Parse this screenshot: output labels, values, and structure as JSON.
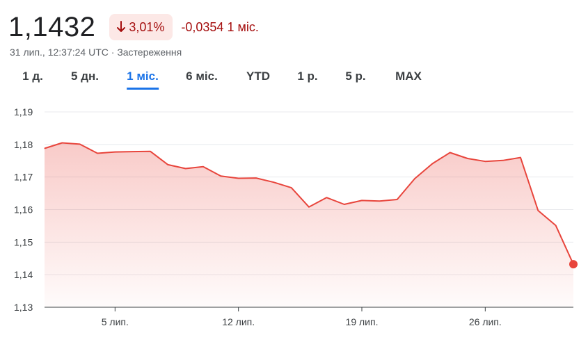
{
  "quote": {
    "price": "1,1432",
    "change_percent": "3,01%",
    "change_abs": "-0,0354",
    "period": "1 міс.",
    "timestamp": "31 лип., 12:37:24 UTC",
    "separator": "·",
    "disclaimer": "Застереження",
    "down_color": "#a50e0e",
    "down_bg": "#fce8e6"
  },
  "tabs": [
    {
      "label": "1 д.",
      "active": false
    },
    {
      "label": "5 дн.",
      "active": false
    },
    {
      "label": "1 міс.",
      "active": true
    },
    {
      "label": "6 міс.",
      "active": false
    },
    {
      "label": "YTD",
      "active": false
    },
    {
      "label": "1 р.",
      "active": false
    },
    {
      "label": "5 р.",
      "active": false
    },
    {
      "label": "MAX",
      "active": false
    }
  ],
  "chart_data": {
    "type": "area",
    "line_color": "#e8453c",
    "grid": true,
    "ylim": [
      1.13,
      1.19
    ],
    "y_ticks": [
      "1,19",
      "1,18",
      "1,17",
      "1,16",
      "1,15",
      "1,14",
      "1,13"
    ],
    "y_tick_values": [
      1.19,
      1.18,
      1.17,
      1.16,
      1.15,
      1.14,
      1.13
    ],
    "x_ticks": [
      "5 лип.",
      "12 лип.",
      "19 лип.",
      "26 лип."
    ],
    "x_tick_days": [
      5,
      12,
      19,
      26
    ],
    "xlim": [
      1,
      31
    ],
    "x": [
      1,
      2,
      3,
      4,
      5,
      6,
      7,
      8,
      9,
      10,
      11,
      12,
      13,
      14,
      15,
      16,
      17,
      18,
      19,
      20,
      21,
      22,
      23,
      24,
      25,
      26,
      27,
      28,
      29,
      30,
      31
    ],
    "values": [
      1.1788,
      1.1805,
      1.1801,
      1.1773,
      1.1777,
      1.1778,
      1.1779,
      1.1738,
      1.1726,
      1.1732,
      1.1703,
      1.1696,
      1.1697,
      1.1684,
      1.1667,
      1.1608,
      1.1637,
      1.1616,
      1.1628,
      1.1626,
      1.1631,
      1.1695,
      1.1741,
      1.1775,
      1.1757,
      1.1748,
      1.1751,
      1.176,
      1.1597,
      1.1551,
      1.1432
    ]
  }
}
